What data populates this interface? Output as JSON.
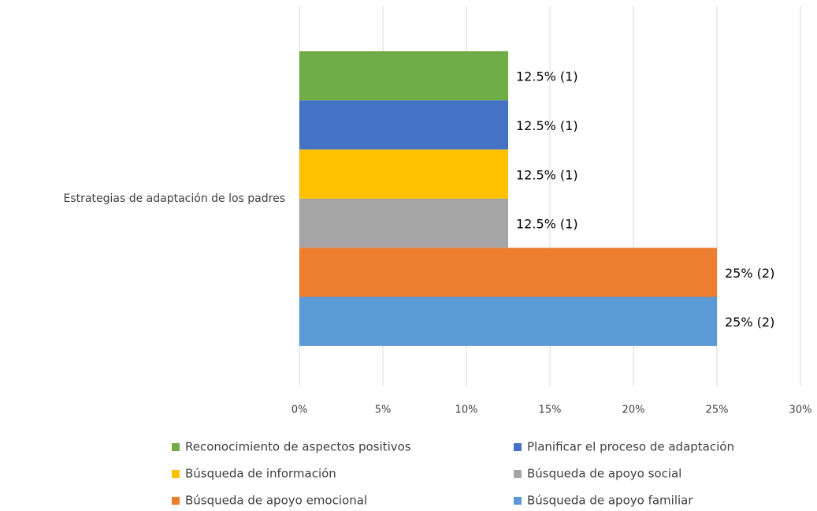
{
  "chart_data": {
    "type": "bar",
    "orientation": "horizontal",
    "categories": [
      "Estrategias de adaptación de los padres"
    ],
    "series": [
      {
        "name": "Reconocimiento de aspectos positivos",
        "color": "#70ad47",
        "values": [
          12.5
        ],
        "value_labels": [
          "12.5% (1)"
        ]
      },
      {
        "name": "Planificar el proceso de adaptación",
        "color": "#4472c4",
        "values": [
          12.5
        ],
        "value_labels": [
          "12.5% (1)"
        ]
      },
      {
        "name": "Búsqueda de información",
        "color": "#ffc000",
        "values": [
          12.5
        ],
        "value_labels": [
          "12.5% (1)"
        ]
      },
      {
        "name": "Búsqueda de apoyo social",
        "color": "#a5a5a5",
        "values": [
          12.5
        ],
        "value_labels": [
          "12.5% (1)"
        ]
      },
      {
        "name": "Búsqueda de apoyo emocional",
        "color": "#ed7d31",
        "values": [
          25
        ],
        "value_labels": [
          "25% (2)"
        ]
      },
      {
        "name": "Búsqueda de apoyo familiar",
        "color": "#5b9bd5",
        "values": [
          25
        ],
        "value_labels": [
          "25% (2)"
        ]
      }
    ],
    "xlim": [
      0,
      30
    ],
    "xticks": [
      {
        "value": 0,
        "label": "0%"
      },
      {
        "value": 5,
        "label": "5%"
      },
      {
        "value": 10,
        "label": "10%"
      },
      {
        "value": 15,
        "label": "15%"
      },
      {
        "value": 20,
        "label": "20%"
      },
      {
        "value": 25,
        "label": "25%"
      },
      {
        "value": 30,
        "label": "30%"
      }
    ],
    "grid": true,
    "legend": "bottom"
  }
}
